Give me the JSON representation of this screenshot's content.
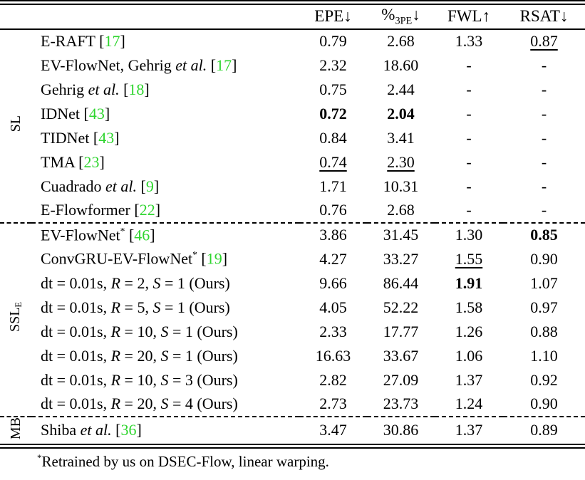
{
  "page": {
    "background": "#ffffff",
    "citation_color": "#2ed52e"
  },
  "table": {
    "headers": [
      [
        [
          "EPE↓",
          "p"
        ]
      ],
      [
        [
          "%",
          "p"
        ],
        [
          "3PE",
          "sub"
        ],
        [
          "↓",
          "p"
        ]
      ],
      [
        [
          "FWL↑",
          "p"
        ]
      ],
      [
        [
          "RSAT↓",
          "p"
        ]
      ]
    ],
    "groups": [
      {
        "id": "sl",
        "label": [
          [
            "SL",
            "p"
          ]
        ],
        "rows": [
          {
            "method": [
              [
                "E-RAFT [",
                "p"
              ],
              [
                "17",
                "ref"
              ],
              [
                "]",
                "p"
              ]
            ],
            "values": [
              [
                "0.79",
                "n"
              ],
              [
                "2.68",
                "n"
              ],
              [
                "1.33",
                "n"
              ],
              [
                "0.87",
                "u"
              ]
            ]
          },
          {
            "method": [
              [
                "EV-FlowNet, Gehrig ",
                "p"
              ],
              [
                "et al.",
                "i"
              ],
              [
                " [",
                "p"
              ],
              [
                "17",
                "ref"
              ],
              [
                "]",
                "p"
              ]
            ],
            "values": [
              [
                "2.32",
                "n"
              ],
              [
                "18.60",
                "n"
              ],
              [
                "-",
                "n"
              ],
              [
                "-",
                "n"
              ]
            ]
          },
          {
            "method": [
              [
                "Gehrig ",
                "p"
              ],
              [
                "et al.",
                "i"
              ],
              [
                " [",
                "p"
              ],
              [
                "18",
                "ref"
              ],
              [
                "]",
                "p"
              ]
            ],
            "values": [
              [
                "0.75",
                "n"
              ],
              [
                "2.44",
                "n"
              ],
              [
                "-",
                "n"
              ],
              [
                "-",
                "n"
              ]
            ]
          },
          {
            "method": [
              [
                "IDNet [",
                "p"
              ],
              [
                "43",
                "ref"
              ],
              [
                "]",
                "p"
              ]
            ],
            "values": [
              [
                "0.72",
                "b"
              ],
              [
                "2.04",
                "b"
              ],
              [
                "-",
                "n"
              ],
              [
                "-",
                "n"
              ]
            ]
          },
          {
            "method": [
              [
                "TIDNet [",
                "p"
              ],
              [
                "43",
                "ref"
              ],
              [
                "]",
                "p"
              ]
            ],
            "values": [
              [
                "0.84",
                "n"
              ],
              [
                "3.41",
                "n"
              ],
              [
                "-",
                "n"
              ],
              [
                "-",
                "n"
              ]
            ]
          },
          {
            "method": [
              [
                "TMA [",
                "p"
              ],
              [
                "23",
                "ref"
              ],
              [
                "]",
                "p"
              ]
            ],
            "values": [
              [
                "0.74",
                "u"
              ],
              [
                "2.30",
                "u"
              ],
              [
                "-",
                "n"
              ],
              [
                "-",
                "n"
              ]
            ]
          },
          {
            "method": [
              [
                "Cuadrado ",
                "p"
              ],
              [
                "et al.",
                "i"
              ],
              [
                " [",
                "p"
              ],
              [
                "9",
                "ref"
              ],
              [
                "]",
                "p"
              ]
            ],
            "values": [
              [
                "1.71",
                "n"
              ],
              [
                "10.31",
                "n"
              ],
              [
                "-",
                "n"
              ],
              [
                "-",
                "n"
              ]
            ]
          },
          {
            "method": [
              [
                "E-Flowformer [",
                "p"
              ],
              [
                "22",
                "ref"
              ],
              [
                "]",
                "p"
              ]
            ],
            "values": [
              [
                "0.76",
                "n"
              ],
              [
                "2.68",
                "n"
              ],
              [
                "-",
                "n"
              ],
              [
                "-",
                "n"
              ]
            ]
          }
        ]
      },
      {
        "id": "ssl-e",
        "label": [
          [
            "SSL",
            "p"
          ],
          [
            "E",
            "sub"
          ]
        ],
        "rows": [
          {
            "method": [
              [
                "EV-FlowNet",
                "p"
              ],
              [
                "*",
                "sup"
              ],
              [
                " [",
                "p"
              ],
              [
                "46",
                "ref"
              ],
              [
                "]",
                "p"
              ]
            ],
            "values": [
              [
                "3.86",
                "n"
              ],
              [
                "31.45",
                "n"
              ],
              [
                "1.30",
                "n"
              ],
              [
                "0.85",
                "b"
              ]
            ]
          },
          {
            "method": [
              [
                "ConvGRU-EV-FlowNet",
                "p"
              ],
              [
                "*",
                "sup"
              ],
              [
                " [",
                "p"
              ],
              [
                "19",
                "ref"
              ],
              [
                "]",
                "p"
              ]
            ],
            "values": [
              [
                "4.27",
                "n"
              ],
              [
                "33.27",
                "n"
              ],
              [
                "1.55",
                "u"
              ],
              [
                "0.90",
                "n"
              ]
            ]
          },
          {
            "method": [
              [
                "dt = 0.01s, ",
                "p"
              ],
              [
                "R",
                "m"
              ],
              [
                " = 2, ",
                "p"
              ],
              [
                "S",
                "m"
              ],
              [
                " = 1 (Ours)",
                "p"
              ]
            ],
            "values": [
              [
                "9.66",
                "n"
              ],
              [
                "86.44",
                "n"
              ],
              [
                "1.91",
                "b"
              ],
              [
                "1.07",
                "n"
              ]
            ]
          },
          {
            "method": [
              [
                "dt = 0.01s, ",
                "p"
              ],
              [
                "R",
                "m"
              ],
              [
                " = 5, ",
                "p"
              ],
              [
                "S",
                "m"
              ],
              [
                " = 1 (Ours)",
                "p"
              ]
            ],
            "values": [
              [
                "4.05",
                "n"
              ],
              [
                "52.22",
                "n"
              ],
              [
                "1.58",
                "n"
              ],
              [
                "0.97",
                "n"
              ]
            ]
          },
          {
            "method": [
              [
                "dt = 0.01s, ",
                "p"
              ],
              [
                "R",
                "m"
              ],
              [
                " = 10, ",
                "p"
              ],
              [
                "S",
                "m"
              ],
              [
                " = 1 (Ours)",
                "p"
              ]
            ],
            "values": [
              [
                "2.33",
                "n"
              ],
              [
                "17.77",
                "n"
              ],
              [
                "1.26",
                "n"
              ],
              [
                "0.88",
                "n"
              ]
            ]
          },
          {
            "method": [
              [
                "dt = 0.01s, ",
                "p"
              ],
              [
                "R",
                "m"
              ],
              [
                " = 20, ",
                "p"
              ],
              [
                "S",
                "m"
              ],
              [
                " = 1 (Ours)",
                "p"
              ]
            ],
            "values": [
              [
                "16.63",
                "n"
              ],
              [
                "33.67",
                "n"
              ],
              [
                "1.06",
                "n"
              ],
              [
                "1.10",
                "n"
              ]
            ]
          },
          {
            "method": [
              [
                "dt = 0.01s, ",
                "p"
              ],
              [
                "R",
                "m"
              ],
              [
                " = 10, ",
                "p"
              ],
              [
                "S",
                "m"
              ],
              [
                " = 3 (Ours)",
                "p"
              ]
            ],
            "values": [
              [
                "2.82",
                "n"
              ],
              [
                "27.09",
                "n"
              ],
              [
                "1.37",
                "n"
              ],
              [
                "0.92",
                "n"
              ]
            ]
          },
          {
            "method": [
              [
                "dt = 0.01s, ",
                "p"
              ],
              [
                "R",
                "m"
              ],
              [
                " = 20, ",
                "p"
              ],
              [
                "S",
                "m"
              ],
              [
                " = 4 (Ours)",
                "p"
              ]
            ],
            "values": [
              [
                "2.73",
                "n"
              ],
              [
                "23.73",
                "n"
              ],
              [
                "1.24",
                "n"
              ],
              [
                "0.90",
                "n"
              ]
            ]
          }
        ]
      },
      {
        "id": "mb",
        "label": [
          [
            "MB",
            "p"
          ]
        ],
        "rows": [
          {
            "method": [
              [
                "Shiba ",
                "p"
              ],
              [
                "et al.",
                "i"
              ],
              [
                " [",
                "p"
              ],
              [
                "36",
                "ref"
              ],
              [
                "]",
                "p"
              ]
            ],
            "values": [
              [
                "3.47",
                "n"
              ],
              [
                "30.86",
                "n"
              ],
              [
                "1.37",
                "n"
              ],
              [
                "0.89",
                "n"
              ]
            ]
          }
        ]
      }
    ],
    "footnote": [
      [
        "*",
        "sup"
      ],
      [
        "Retrained by us on DSEC-Flow, linear warping.",
        "p"
      ]
    ]
  }
}
